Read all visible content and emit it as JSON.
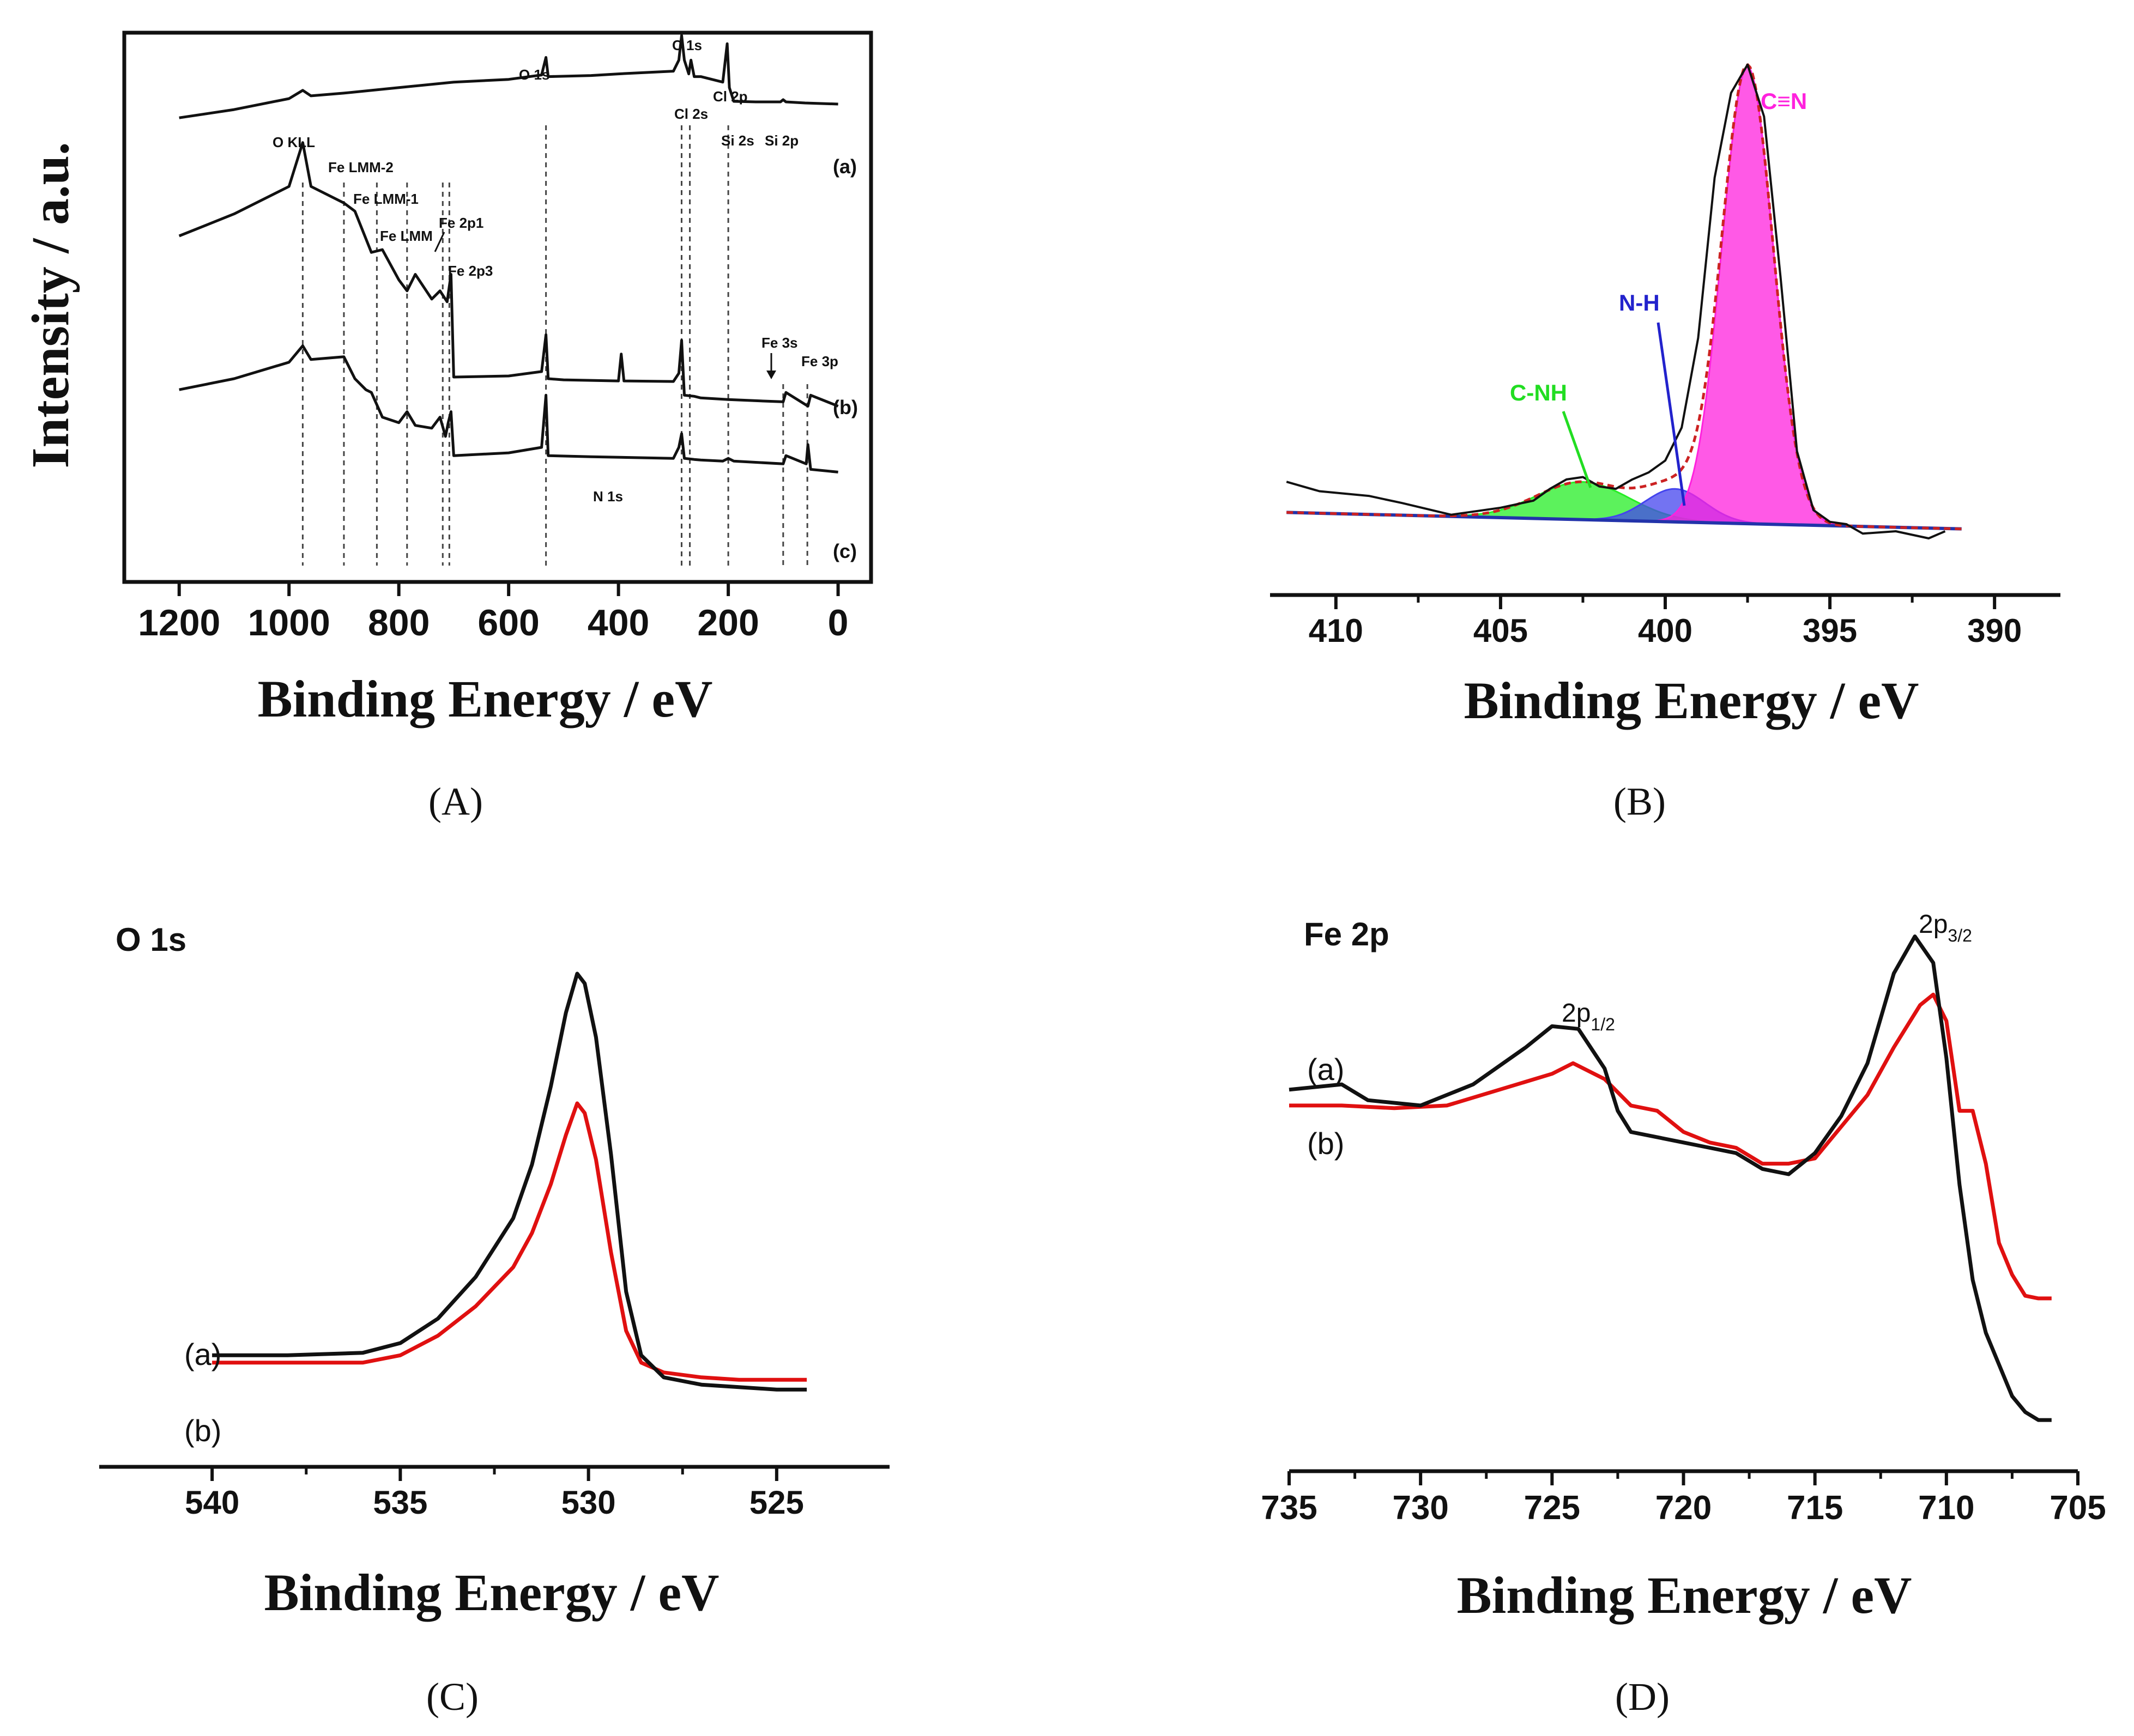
{
  "chart_data": [
    {
      "panel": "A",
      "type": "line",
      "caption": "(A)",
      "xlabel": "Binding Energy / eV",
      "ylabel": "Intensity / a.u.",
      "xlim": [
        1300,
        -60
      ],
      "xticks": [
        1200,
        1000,
        800,
        600,
        400,
        200,
        0
      ],
      "xtick_labels": [
        "1200",
        "1000",
        "800",
        "600",
        "400",
        "200",
        "0"
      ],
      "ylim": [
        0,
        100
      ],
      "series": [
        {
          "name": "(a)",
          "color": "#111111",
          "label_x": -10,
          "label_y": 82,
          "x": [
            1200,
            1100,
            1000,
            975,
            960,
            900,
            800,
            700,
            600,
            540,
            532,
            528,
            450,
            400,
            300,
            290,
            285,
            280,
            272,
            268,
            262,
            250,
            210,
            202,
            198,
            190,
            150,
            105,
            100,
            95,
            60,
            0
          ],
          "y": [
            84.5,
            86,
            88,
            89.5,
            88.5,
            89,
            90,
            91,
            91.5,
            92.3,
            95.5,
            92,
            92.2,
            92.5,
            93,
            95,
            99.5,
            95,
            92.5,
            95,
            92,
            92,
            91,
            98,
            90,
            87.5,
            87.4,
            87.4,
            87.8,
            87.4,
            87.2,
            87.0
          ]
        },
        {
          "name": "(b)",
          "color": "#111111",
          "label_x": -10,
          "label_y": 34,
          "x": [
            1200,
            1100,
            1000,
            975,
            960,
            900,
            880,
            860,
            850,
            830,
            800,
            785,
            770,
            740,
            725,
            715,
            710,
            705,
            700,
            600,
            540,
            532,
            528,
            450,
            300,
            290,
            285,
            280,
            262,
            250,
            210,
            200,
            190,
            100,
            95,
            58,
            55,
            50,
            0
          ],
          "y": [
            35,
            37,
            40,
            43,
            40.5,
            41,
            37,
            35,
            34.5,
            30,
            29,
            31,
            28.5,
            28,
            30,
            26.5,
            29,
            31,
            23,
            23.5,
            24.5,
            34,
            23,
            22.8,
            22.5,
            24.5,
            27,
            22.5,
            22.3,
            22.2,
            22,
            22.5,
            22,
            21.5,
            23,
            21.5,
            25,
            20.5,
            20
          ]
        },
        {
          "name": "(c)",
          "color": "#111111",
          "label_x": -10,
          "label_y": 5,
          "x": [
            1200,
            1100,
            1000,
            975,
            960,
            900,
            880,
            850,
            830,
            800,
            785,
            770,
            740,
            725,
            712,
            705,
            700,
            600,
            540,
            532,
            528,
            500,
            400,
            395,
            390,
            300,
            290,
            285,
            280,
            262,
            250,
            200,
            150,
            100,
            95,
            55,
            50,
            0
          ],
          "y": [
            63,
            67,
            72,
            80,
            72,
            69,
            67.5,
            60,
            60.5,
            55,
            53,
            56,
            51.5,
            53,
            51,
            56,
            37.3,
            37.5,
            38.3,
            45,
            37,
            36.8,
            36.6,
            41.5,
            36.6,
            36.5,
            38,
            44,
            34,
            33.8,
            33.5,
            33.2,
            33,
            32.8,
            34.5,
            32,
            34,
            32
          ]
        }
      ],
      "peak_labels": [
        "O KLL",
        "Fe LMM-2",
        "Fe LMM-1",
        "Fe LMM",
        "Fe 2p1",
        "Fe 2p3",
        "O 1s",
        "C 1s",
        "Cl 2s",
        "Cl 2p",
        "Si 2s",
        "Si 2p",
        "N 1s",
        "Fe 3s",
        "Fe 3p"
      ],
      "reference_lines_eV": [
        975,
        900,
        840,
        785,
        720,
        708,
        532,
        285,
        270,
        200,
        100,
        56
      ]
    },
    {
      "panel": "B",
      "type": "area",
      "caption": "(B)",
      "xlabel": "Binding Energy / eV",
      "xlim": [
        412,
        388
      ],
      "xticks": [
        410,
        405,
        400,
        395,
        390
      ],
      "xtick_labels": [
        "410",
        "405",
        "400",
        "395",
        "390"
      ],
      "ylim": [
        0,
        100
      ],
      "baseline": {
        "x": [
          411.5,
          391
        ],
        "y": [
          4,
          0.5
        ]
      },
      "components": [
        {
          "name": "C-NH",
          "color": "#26ee26",
          "center": 402.5,
          "height": 8,
          "sigma": 1.4
        },
        {
          "name": "N-H",
          "color": "#4444ee",
          "center": 399.7,
          "height": 7,
          "sigma": 0.9
        },
        {
          "name": "C≡N",
          "color": "#ff22dd",
          "center": 397.5,
          "height": 97,
          "sigma": 0.78
        }
      ],
      "raw": {
        "name": "raw",
        "color": "#111111",
        "x": [
          411.5,
          410.5,
          409,
          408,
          406.5,
          405,
          404,
          403.5,
          403,
          402.5,
          402,
          401.5,
          401,
          400.5,
          400,
          399.5,
          399,
          398.5,
          398,
          397.5,
          397,
          396.5,
          396,
          395.5,
          395,
          394.5,
          394,
          393,
          392,
          391.5
        ],
        "y": [
          10.5,
          8.5,
          7.5,
          6,
          3.5,
          5,
          6.5,
          9,
          11,
          11.5,
          9.5,
          9,
          11,
          12.5,
          15,
          22,
          41,
          75,
          93,
          99,
          88,
          54,
          17,
          4.5,
          2,
          1.5,
          -0.5,
          0,
          -1.5,
          0
        ]
      },
      "fit": {
        "name": "fit",
        "color": "#cc2222"
      }
    },
    {
      "panel": "C",
      "type": "line",
      "caption": "(C)",
      "title": "O 1s",
      "xlabel": "Binding Energy / eV",
      "xlim": [
        543,
        522
      ],
      "xticks": [
        540,
        535,
        530,
        525
      ],
      "xtick_labels": [
        "540",
        "535",
        "530",
        "525"
      ],
      "ylim": [
        0,
        100
      ],
      "series": [
        {
          "name": "(a)",
          "color": "#111111",
          "x": [
            540,
            538,
            536,
            535,
            534,
            533,
            532,
            531.5,
            531,
            530.6,
            530.3,
            530.1,
            529.8,
            529.4,
            529,
            528.6,
            528,
            527,
            526,
            525,
            524.2
          ],
          "y": [
            17,
            17,
            17.5,
            19.5,
            24.5,
            33,
            45,
            56,
            72,
            87,
            95,
            93,
            82,
            58,
            30,
            17,
            12.5,
            11,
            10.5,
            10,
            10
          ]
        },
        {
          "name": "(b)",
          "color": "#e01010",
          "x": [
            540,
            538,
            536,
            535,
            534,
            533,
            532,
            531.5,
            531,
            530.6,
            530.3,
            530.1,
            529.8,
            529.4,
            529,
            528.6,
            528,
            527,
            526,
            525,
            524.2
          ],
          "y": [
            15.5,
            15.5,
            15.5,
            17,
            21,
            27,
            35,
            42,
            52,
            62,
            68.5,
            66.5,
            57,
            38,
            22,
            15.5,
            13.5,
            12.5,
            12,
            12,
            12
          ]
        }
      ],
      "series_labels": [
        "(a)",
        "(b)"
      ]
    },
    {
      "panel": "D",
      "type": "line",
      "caption": "(D)",
      "title": "Fe 2p",
      "xlabel": "Binding Energy / eV",
      "xlim": [
        735,
        705
      ],
      "xticks": [
        735,
        730,
        725,
        720,
        715,
        710,
        705
      ],
      "xtick_labels": [
        "735",
        "730",
        "725",
        "720",
        "715",
        "710",
        "705"
      ],
      "ylim": [
        0,
        100
      ],
      "series": [
        {
          "name": "(a)",
          "color": "#111111",
          "x": [
            735,
            733,
            732,
            730,
            728,
            726,
            725,
            724,
            723,
            722.5,
            722,
            721,
            720,
            719,
            718,
            717,
            716,
            715,
            714,
            713,
            712,
            711.2,
            710.5,
            710,
            709.5,
            709,
            708.5,
            708,
            707.5,
            707,
            706.5,
            706
          ],
          "y": [
            66,
            67,
            64,
            63,
            67,
            74,
            78,
            77.5,
            70,
            62,
            58,
            57,
            56,
            55,
            54,
            51,
            50,
            54,
            61,
            71,
            88,
            95,
            90,
            72,
            48,
            30,
            20,
            14,
            8,
            5,
            3.5,
            3.5
          ]
        },
        {
          "name": "(b)",
          "color": "#e01010",
          "x": [
            735,
            733,
            731,
            729,
            727,
            725,
            724.2,
            723,
            722,
            721,
            720,
            719,
            718,
            717,
            716,
            715,
            714,
            713,
            712,
            711,
            710.5,
            710,
            709.5,
            709,
            708.5,
            708,
            707.5,
            707,
            706.5,
            706
          ],
          "y": [
            63,
            63,
            62.5,
            63,
            66,
            69,
            71,
            68,
            63,
            62,
            58,
            56,
            55,
            52,
            52,
            53,
            59,
            65,
            74,
            82,
            84,
            79,
            62,
            62,
            52,
            37,
            31,
            27,
            26.5,
            26.5
          ]
        }
      ],
      "annotations": [
        "2p",
        "1/2",
        "2p",
        "3/2"
      ],
      "series_labels": [
        "(a)",
        "(b)"
      ]
    }
  ]
}
